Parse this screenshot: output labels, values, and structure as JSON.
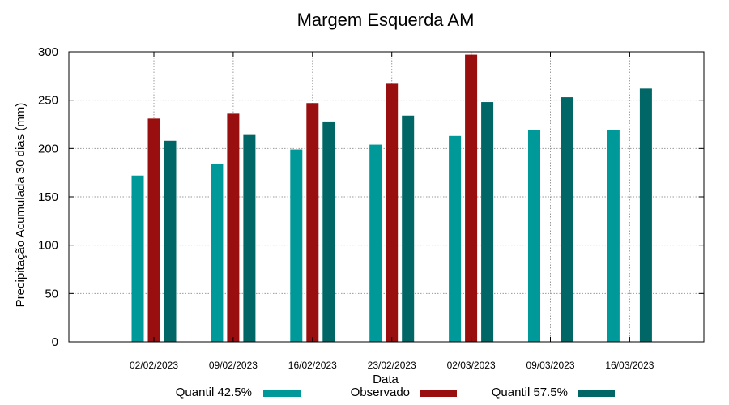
{
  "chart_data": {
    "type": "bar",
    "title": "Margem Esquerda AM",
    "xlabel": "Data",
    "ylabel": "Precipitação Acumulada 30 dias (mm)",
    "ylim": [
      0,
      300
    ],
    "yticks": [
      "0",
      "50",
      "100",
      "150",
      "200",
      "250",
      "300"
    ],
    "grid": true,
    "legend_position": "bottom",
    "categories": [
      "02/02/2023",
      "09/02/2023",
      "16/02/2023",
      "23/02/2023",
      "02/03/2023",
      "09/03/2023",
      "16/03/2023"
    ],
    "series": [
      {
        "name": "Quantil 42.5%",
        "color": "#009999",
        "values": [
          172,
          184,
          199,
          204,
          213,
          219,
          219
        ]
      },
      {
        "name": "Observado",
        "color": "#990f0f",
        "values": [
          231,
          236,
          247,
          267,
          297,
          null,
          null
        ]
      },
      {
        "name": "Quantil 57.5%",
        "color": "#006666",
        "values": [
          208,
          214,
          228,
          234,
          248,
          253,
          262
        ]
      }
    ]
  }
}
